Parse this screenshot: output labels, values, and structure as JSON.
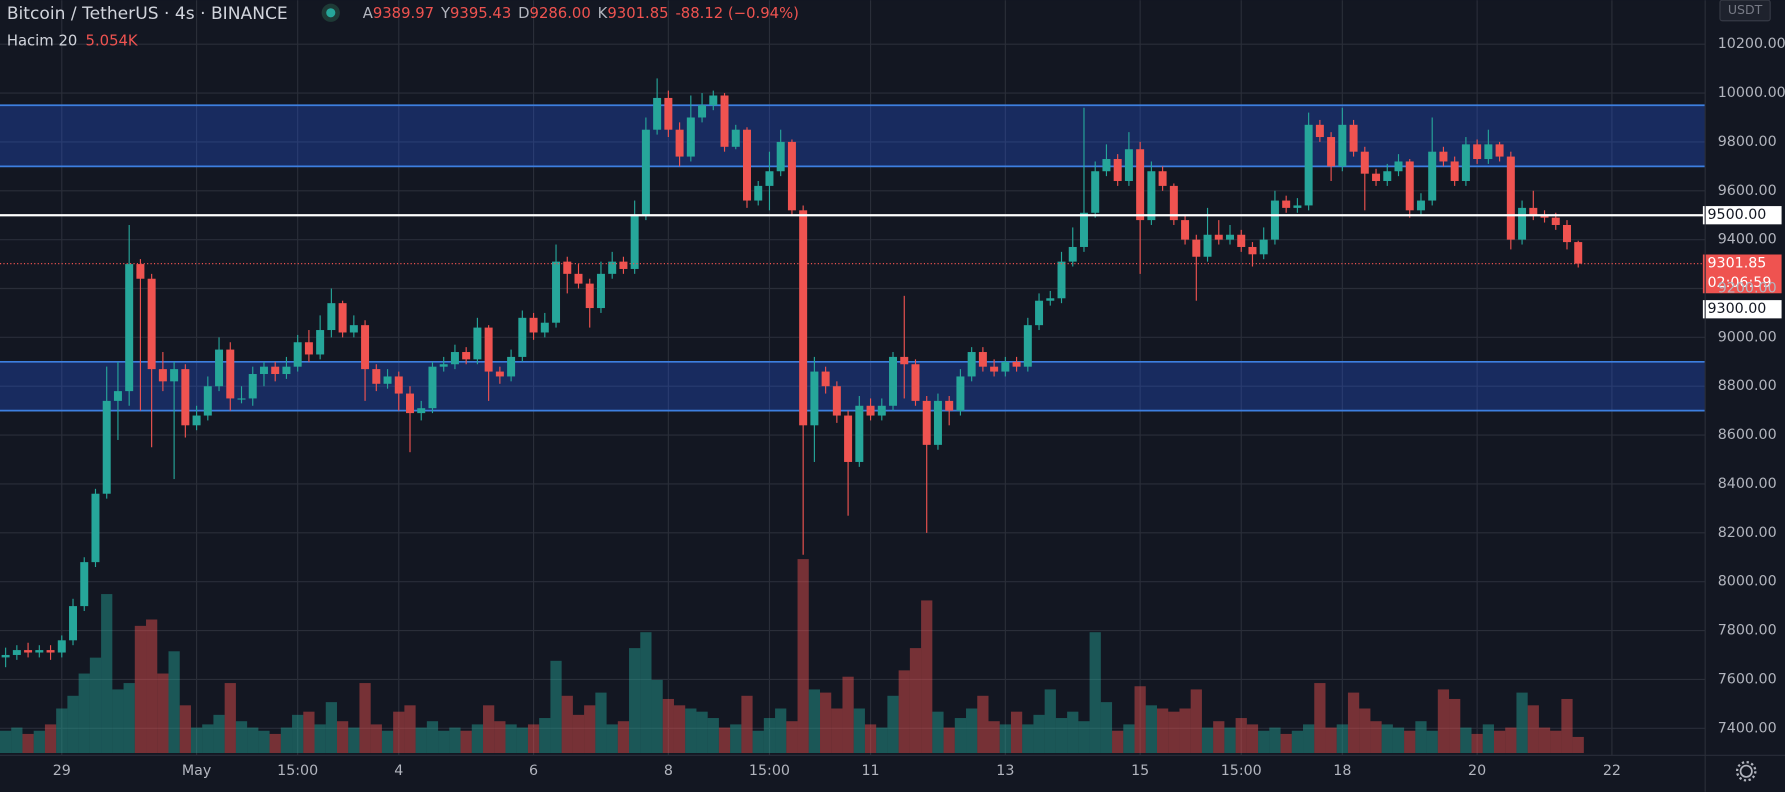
{
  "header": {
    "symbol": "Bitcoin / TetherUS · 4s · BINANCE",
    "ohlc": [
      [
        "A",
        "9389.97"
      ],
      [
        "Y",
        "9395.43"
      ],
      [
        "D",
        "9286.00"
      ],
      [
        "K",
        "9301.85"
      ]
    ],
    "change": "-88.12 (−0.94%)",
    "volume_name": "Hacim 20",
    "volume_value": "5.054K",
    "currency": "USDT"
  },
  "chart_data": {
    "type": "candlestick",
    "up_color": "#26a69a",
    "down_color": "#ef5350",
    "open": [
      7690,
      7700,
      7720,
      7710,
      7720,
      7710,
      7760,
      7900,
      8080,
      8360,
      8740,
      8780,
      9300,
      9240,
      8870,
      8820,
      8870,
      8640,
      8680,
      8800,
      8950,
      8750,
      8750,
      8850,
      8880,
      8850,
      8880,
      8980,
      8930,
      9030,
      9140,
      9020,
      9050,
      8870,
      8810,
      8840,
      8770,
      8690,
      8710,
      8880,
      8890,
      8940,
      8910,
      9040,
      8860,
      8840,
      8920,
      9080,
      9020,
      9060,
      9310,
      9260,
      9220,
      9120,
      9260,
      9310,
      9280,
      9500,
      9850,
      9980,
      9850,
      9740,
      9900,
      9950,
      9990,
      9780,
      9850,
      9560,
      9620,
      9680,
      9800,
      9520,
      8640,
      8860,
      8800,
      8680,
      8490,
      8720,
      8680,
      8720,
      8920,
      8890,
      8740,
      8560,
      8740,
      8700,
      8840,
      8940,
      8880,
      8860,
      8900,
      8880,
      9050,
      9150,
      9160,
      9310,
      9370,
      9510,
      9680,
      9730,
      9640,
      9770,
      9480,
      9680,
      9620,
      9480,
      9400,
      9330,
      9420,
      9400,
      9420,
      9370,
      9340,
      9400,
      9560,
      9530,
      9540,
      9870,
      9820,
      9700,
      9870,
      9760,
      9670,
      9640,
      9680,
      9720,
      9520,
      9560,
      9760,
      9720,
      9640,
      9790,
      9730,
      9790,
      9740,
      9400,
      9530,
      9500,
      9490,
      9460,
      9389.97
    ],
    "high": [
      7730,
      7740,
      7750,
      7740,
      7740,
      7780,
      7930,
      8100,
      8380,
      8880,
      8900,
      9460,
      9320,
      9260,
      8940,
      8900,
      8890,
      8720,
      8840,
      9000,
      8980,
      8800,
      8880,
      8900,
      8900,
      8920,
      9010,
      9030,
      9090,
      9200,
      9150,
      9090,
      9070,
      8890,
      8870,
      8860,
      8800,
      8740,
      8900,
      8920,
      8970,
      8960,
      9080,
      9050,
      8880,
      8950,
      9110,
      9100,
      9100,
      9380,
      9330,
      9300,
      9240,
      9310,
      9350,
      9330,
      9560,
      9900,
      10060,
      10010,
      9880,
      9990,
      10000,
      10010,
      10000,
      9870,
      9860,
      9640,
      9760,
      9850,
      9810,
      9540,
      8920,
      8880,
      8820,
      8700,
      8760,
      8750,
      8750,
      8940,
      9170,
      8910,
      8760,
      8770,
      8760,
      8870,
      8960,
      8960,
      8910,
      8920,
      8920,
      9080,
      9180,
      9190,
      9350,
      9450,
      9940,
      9720,
      9790,
      9750,
      9840,
      9800,
      9720,
      9700,
      9630,
      9500,
      9420,
      9530,
      9480,
      9460,
      9440,
      9390,
      9450,
      9600,
      9580,
      9570,
      9920,
      9890,
      9840,
      9940,
      9890,
      9780,
      9690,
      9710,
      9750,
      9730,
      9590,
      9900,
      9780,
      9740,
      9820,
      9810,
      9850,
      9800,
      9760,
      9560,
      9600,
      9520,
      9510,
      9480,
      9395.43
    ],
    "low": [
      7650,
      7680,
      7690,
      7690,
      7680,
      7690,
      7740,
      7880,
      8060,
      8340,
      8580,
      8720,
      8700,
      8550,
      8780,
      8420,
      8590,
      8620,
      8660,
      8780,
      8700,
      8730,
      8720,
      8800,
      8820,
      8830,
      8860,
      8900,
      8910,
      9000,
      9000,
      9000,
      8740,
      8780,
      8790,
      8700,
      8530,
      8660,
      8690,
      8860,
      8870,
      8890,
      8890,
      8740,
      8810,
      8820,
      8900,
      8990,
      9000,
      9040,
      9180,
      9200,
      9040,
      9100,
      9240,
      9260,
      9260,
      9480,
      9830,
      9820,
      9700,
      9720,
      9880,
      9930,
      9760,
      9770,
      9530,
      9540,
      9520,
      9660,
      9500,
      8110,
      8490,
      8770,
      8650,
      8270,
      8470,
      8660,
      8660,
      8700,
      8750,
      8720,
      8200,
      8540,
      8640,
      8680,
      8820,
      8860,
      8840,
      8840,
      8860,
      8860,
      9030,
      9130,
      9140,
      9290,
      9350,
      9490,
      9660,
      9620,
      9620,
      9260,
      9460,
      9600,
      9460,
      9380,
      9150,
      9310,
      9380,
      9380,
      9350,
      9290,
      9320,
      9380,
      9510,
      9510,
      9520,
      9800,
      9640,
      9680,
      9740,
      9520,
      9620,
      9620,
      9660,
      9490,
      9500,
      9540,
      9700,
      9620,
      9620,
      9710,
      9710,
      9720,
      9360,
      9380,
      9480,
      9470,
      9440,
      9360,
      9286.0
    ],
    "close": [
      7700,
      7720,
      7710,
      7720,
      7710,
      7760,
      7900,
      8080,
      8360,
      8740,
      8780,
      9300,
      9240,
      8870,
      8820,
      8870,
      8640,
      8680,
      8800,
      8950,
      8750,
      8750,
      8850,
      8880,
      8850,
      8880,
      8980,
      8930,
      9030,
      9140,
      9020,
      9050,
      8870,
      8810,
      8840,
      8770,
      8690,
      8710,
      8880,
      8890,
      8940,
      8910,
      9040,
      8860,
      8840,
      8920,
      9080,
      9020,
      9060,
      9310,
      9260,
      9220,
      9120,
      9260,
      9310,
      9280,
      9500,
      9850,
      9980,
      9850,
      9740,
      9900,
      9950,
      9990,
      9780,
      9850,
      9560,
      9620,
      9680,
      9800,
      9520,
      8640,
      8860,
      8800,
      8680,
      8490,
      8720,
      8680,
      8720,
      8920,
      8890,
      8740,
      8560,
      8740,
      8700,
      8840,
      8940,
      8880,
      8860,
      8900,
      8880,
      9050,
      9150,
      9160,
      9310,
      9370,
      9510,
      9680,
      9730,
      9640,
      9770,
      9480,
      9680,
      9620,
      9480,
      9400,
      9330,
      9420,
      9400,
      9420,
      9370,
      9340,
      9400,
      9560,
      9530,
      9540,
      9870,
      9820,
      9700,
      9870,
      9760,
      9670,
      9640,
      9680,
      9720,
      9520,
      9560,
      9760,
      9720,
      9640,
      9790,
      9730,
      9790,
      9740,
      9400,
      9530,
      9500,
      9490,
      9460,
      9389.97,
      9301.85
    ],
    "volume": [
      7,
      8,
      6,
      7,
      9,
      14,
      18,
      25,
      30,
      50,
      20,
      22,
      40,
      42,
      25,
      32,
      15,
      8,
      9,
      12,
      22,
      10,
      8,
      7,
      6,
      8,
      12,
      13,
      9,
      16,
      10,
      8,
      22,
      9,
      7,
      13,
      15,
      8,
      10,
      7,
      8,
      7,
      9,
      15,
      10,
      9,
      8,
      9,
      11,
      29,
      18,
      12,
      15,
      19,
      9,
      10,
      33,
      38,
      23,
      17,
      15,
      14,
      13,
      11,
      8,
      9,
      18,
      7,
      11,
      14,
      10,
      61,
      20,
      19,
      14,
      24,
      14,
      9,
      8,
      18,
      26,
      33,
      48,
      13,
      8,
      11,
      14,
      18,
      10,
      9,
      13,
      9,
      12,
      20,
      11,
      13,
      10,
      38,
      16,
      7,
      9,
      21,
      15,
      14,
      13,
      14,
      20,
      8,
      10,
      8,
      11,
      9,
      7,
      8,
      6,
      7,
      9,
      22,
      8,
      9,
      19,
      14,
      10,
      9,
      8,
      7,
      10,
      7,
      20,
      17,
      8,
      6,
      9,
      7,
      8,
      19,
      15,
      8,
      7,
      17,
      5.054
    ],
    "xlim": [
      -0.5,
      151.3
    ],
    "xticks": [
      {
        "value": 5,
        "label": "29"
      },
      {
        "value": 17,
        "label": "May"
      },
      {
        "value": 26,
        "label": "15:00"
      },
      {
        "value": 35,
        "label": "4"
      },
      {
        "value": 47,
        "label": "6"
      },
      {
        "value": 59,
        "label": "8"
      },
      {
        "value": 68,
        "label": "15:00"
      },
      {
        "value": 77,
        "label": "11"
      },
      {
        "value": 89,
        "label": "13"
      },
      {
        "value": 101,
        "label": "15"
      },
      {
        "value": 110,
        "label": "15:00"
      },
      {
        "value": 119,
        "label": "18"
      },
      {
        "value": 131,
        "label": "20"
      },
      {
        "value": 143,
        "label": "22"
      }
    ],
    "ylim": [
      7140,
      10380
    ],
    "yticks": [
      {
        "value": 7400,
        "label": "7400.00"
      },
      {
        "value": 7600,
        "label": "7600.00"
      },
      {
        "value": 7800,
        "label": "7800.00"
      },
      {
        "value": 8000,
        "label": "8000.00"
      },
      {
        "value": 8200,
        "label": "8200.00"
      },
      {
        "value": 8400,
        "label": "8400.00"
      },
      {
        "value": 8600,
        "label": "8600.00"
      },
      {
        "value": 8800,
        "label": "8800.00"
      },
      {
        "value": 9000,
        "label": "9000.00"
      },
      {
        "value": 9200,
        "label": "9200.00"
      },
      {
        "value": 9400,
        "label": "9400.00"
      },
      {
        "value": 9600,
        "label": "9600.00"
      },
      {
        "value": 9800,
        "label": "9800.00"
      },
      {
        "value": 10000,
        "label": "10000.00"
      },
      {
        "value": 10200,
        "label": "10200.00"
      }
    ],
    "zones": [
      [
        9700,
        9950
      ],
      [
        8700,
        8900
      ]
    ],
    "hline": {
      "value": 9500,
      "label": "9500.00"
    },
    "last_price": {
      "value": 9301.85,
      "label": "9301.85"
    },
    "countdown": "02:06:59",
    "alert_line": {
      "value": 9300,
      "label": "9300.00"
    },
    "grid": true
  }
}
